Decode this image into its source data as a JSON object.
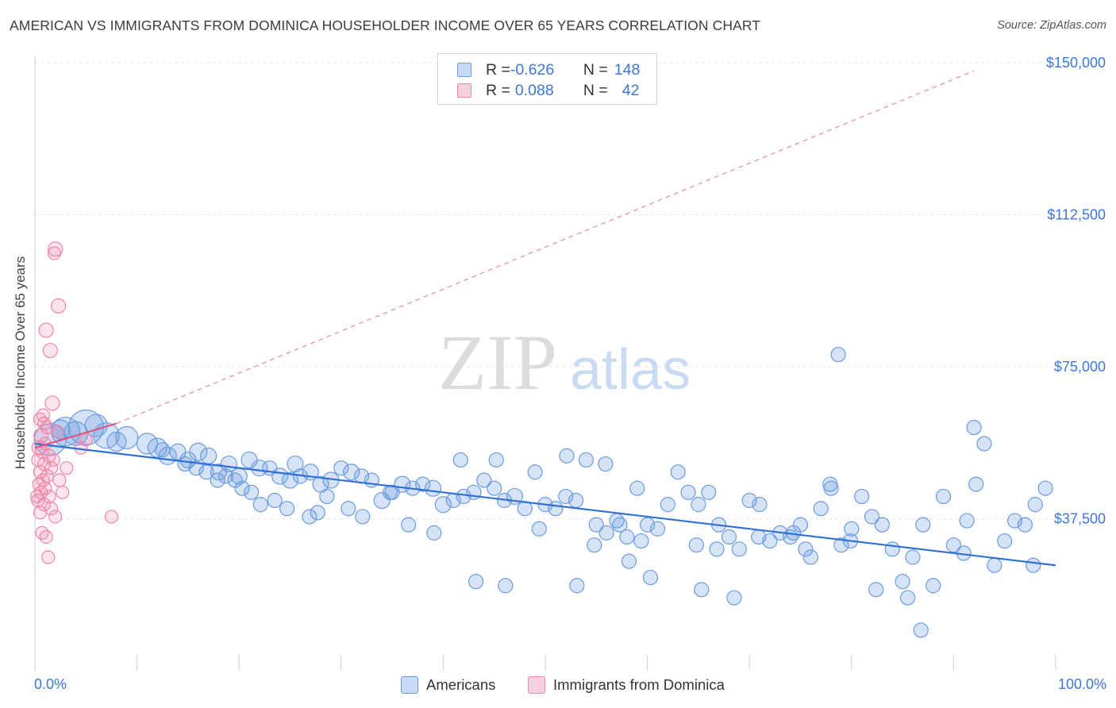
{
  "title": "AMERICAN VS IMMIGRANTS FROM DOMINICA HOUSEHOLDER INCOME OVER 65 YEARS CORRELATION CHART",
  "source": "Source: ZipAtlas.com",
  "watermark": {
    "zip": "ZIP",
    "atlas": "atlas"
  },
  "legend": {
    "rows": [
      {
        "r_label": "R = ",
        "r_value": "-0.626",
        "n_label": "N = ",
        "n_value": "148",
        "color": "#5b8fd9"
      },
      {
        "r_label": "R = ",
        "r_value": "0.088",
        "n_label": "N = ",
        "n_value": "42",
        "color": "#e87fa0"
      }
    ]
  },
  "bottom_legend": {
    "americans": "Americans",
    "dominica": "Immigrants from Dominica"
  },
  "colors": {
    "blue": "#6b9be0",
    "blue_line": "#2f6fd6",
    "pink": "#ef86a8",
    "pink_line": "#e0557f",
    "axis_text": "#3c78d8"
  },
  "chart_data": {
    "type": "scatter",
    "ylabel": "Householder Income Over 65 years",
    "xlim": [
      0,
      100
    ],
    "ylim": [
      0,
      157500
    ],
    "x_tick_labels": {
      "min": "0.0%",
      "max": "100.0%"
    },
    "y_ticks": [
      {
        "value": 37500,
        "label": "$37,500"
      },
      {
        "value": 75000,
        "label": "$75,000"
      },
      {
        "value": 112500,
        "label": "$112,500"
      },
      {
        "value": 150000,
        "label": "$150,000"
      }
    ],
    "series": [
      {
        "name": "Americans",
        "points": [
          [
            1.5,
            57000,
            20
          ],
          [
            3,
            59000,
            18
          ],
          [
            5,
            60000,
            22
          ],
          [
            7,
            58000,
            16
          ],
          [
            9,
            57500,
            14
          ],
          [
            11,
            56000,
            13
          ],
          [
            8,
            56500,
            12
          ],
          [
            4,
            58500,
            15
          ],
          [
            2.5,
            59500,
            12
          ],
          [
            6,
            60500,
            14
          ],
          [
            12,
            55000,
            12
          ],
          [
            13,
            53000,
            11
          ],
          [
            14,
            54000,
            10
          ],
          [
            15,
            52000,
            10
          ],
          [
            16,
            54000,
            11
          ],
          [
            17,
            53000,
            10
          ],
          [
            12.5,
            54500,
            9
          ],
          [
            18,
            49000,
            10
          ],
          [
            19,
            51000,
            10
          ],
          [
            20,
            48000,
            10
          ],
          [
            21,
            52000,
            10
          ],
          [
            22,
            50000,
            10
          ],
          [
            23,
            50000,
            9
          ],
          [
            24,
            48000,
            10
          ],
          [
            25,
            47000,
            10
          ],
          [
            25.5,
            51000,
            10
          ],
          [
            26,
            48000,
            9
          ],
          [
            27,
            49000,
            10
          ],
          [
            28,
            46000,
            10
          ],
          [
            29,
            47000,
            10
          ],
          [
            30,
            50000,
            9
          ],
          [
            31,
            49000,
            10
          ],
          [
            32,
            48000,
            9
          ],
          [
            33,
            47000,
            9
          ],
          [
            34,
            42000,
            10
          ],
          [
            35,
            44000,
            9
          ],
          [
            36,
            46000,
            10
          ],
          [
            37,
            45000,
            9
          ],
          [
            38,
            46000,
            9
          ],
          [
            39,
            45000,
            10
          ],
          [
            40,
            41000,
            10
          ],
          [
            41,
            42000,
            9
          ],
          [
            42,
            43000,
            9
          ],
          [
            43,
            44000,
            9
          ],
          [
            44,
            47000,
            9
          ],
          [
            45,
            45000,
            9
          ],
          [
            46,
            42000,
            9
          ],
          [
            47,
            43000,
            10
          ],
          [
            48,
            40000,
            9
          ],
          [
            49,
            49000,
            9
          ],
          [
            50,
            41000,
            9
          ],
          [
            51,
            40000,
            9
          ],
          [
            52,
            43000,
            9
          ],
          [
            53,
            42000,
            9
          ],
          [
            54,
            52000,
            9
          ],
          [
            55,
            36000,
            9
          ],
          [
            56,
            34000,
            9
          ],
          [
            57,
            37000,
            9
          ],
          [
            58,
            33000,
            9
          ],
          [
            59,
            45000,
            9
          ],
          [
            60,
            36000,
            9
          ],
          [
            61,
            35000,
            9
          ],
          [
            62,
            41000,
            9
          ],
          [
            63,
            49000,
            9
          ],
          [
            64,
            44000,
            9
          ],
          [
            65,
            41000,
            9
          ],
          [
            66,
            44000,
            9
          ],
          [
            67,
            36000,
            9
          ],
          [
            68,
            33000,
            9
          ],
          [
            69,
            30000,
            9
          ],
          [
            70,
            42000,
            9
          ],
          [
            71,
            41000,
            9
          ],
          [
            72,
            32000,
            9
          ],
          [
            73,
            34000,
            9
          ],
          [
            74,
            33000,
            9
          ],
          [
            75,
            36000,
            9
          ],
          [
            76,
            28000,
            9
          ],
          [
            77,
            40000,
            9
          ],
          [
            78,
            45000,
            9
          ],
          [
            79,
            31000,
            9
          ],
          [
            80,
            35000,
            9
          ],
          [
            81,
            43000,
            9
          ],
          [
            82,
            38000,
            9
          ],
          [
            83,
            36000,
            9
          ],
          [
            84,
            30000,
            9
          ],
          [
            85,
            22000,
            9
          ],
          [
            86,
            28000,
            9
          ],
          [
            87,
            36000,
            9
          ],
          [
            88,
            21000,
            9
          ],
          [
            89,
            43000,
            9
          ],
          [
            90,
            31000,
            9
          ],
          [
            91,
            29000,
            9
          ],
          [
            92,
            60000,
            9
          ],
          [
            93,
            56000,
            9
          ],
          [
            94,
            26000,
            9
          ],
          [
            95,
            32000,
            9
          ],
          [
            96,
            37000,
            9
          ],
          [
            97,
            36000,
            9
          ],
          [
            98,
            41000,
            9
          ],
          [
            99,
            45000,
            9
          ],
          [
            78.7,
            78000,
            9
          ],
          [
            97.8,
            26000,
            9
          ],
          [
            85.5,
            18000,
            9
          ],
          [
            86.8,
            10000,
            9
          ],
          [
            92.2,
            46000,
            9
          ],
          [
            91.3,
            37000,
            9
          ],
          [
            75.5,
            30000,
            9
          ],
          [
            74.3,
            34000,
            9
          ],
          [
            79.9,
            32000,
            9
          ],
          [
            82.4,
            20000,
            9
          ],
          [
            70.9,
            33000,
            9
          ],
          [
            66.8,
            30000,
            9
          ],
          [
            68.5,
            18000,
            9
          ],
          [
            65.3,
            20000,
            9
          ],
          [
            64.8,
            31000,
            9
          ],
          [
            60.3,
            23000,
            9
          ],
          [
            59.4,
            32000,
            9
          ],
          [
            58.2,
            27000,
            9
          ],
          [
            54.8,
            31000,
            9
          ],
          [
            53.1,
            21000,
            9
          ],
          [
            46.1,
            21000,
            9
          ],
          [
            49.4,
            35000,
            9
          ],
          [
            43.2,
            22000,
            9
          ],
          [
            57.3,
            36000,
            9
          ],
          [
            77.9,
            46000,
            9
          ],
          [
            55.9,
            51000,
            9
          ],
          [
            52.1,
            53000,
            9
          ],
          [
            45.2,
            52000,
            9
          ],
          [
            41.7,
            52000,
            9
          ],
          [
            39.1,
            34000,
            9
          ],
          [
            36.6,
            36000,
            9
          ],
          [
            34.8,
            44000,
            9
          ],
          [
            32.1,
            38000,
            9
          ],
          [
            30.7,
            40000,
            9
          ],
          [
            28.6,
            43000,
            9
          ],
          [
            27.7,
            39000,
            9
          ],
          [
            26.9,
            38000,
            9
          ],
          [
            24.7,
            40000,
            9
          ],
          [
            23.5,
            42000,
            9
          ],
          [
            22.1,
            41000,
            9
          ],
          [
            21.2,
            44000,
            9
          ],
          [
            20.3,
            45000,
            9
          ],
          [
            19.6,
            47000,
            9
          ],
          [
            18.7,
            48000,
            9
          ],
          [
            17.9,
            47000,
            9
          ],
          [
            16.8,
            49000,
            9
          ],
          [
            15.8,
            50000,
            9
          ],
          [
            14.7,
            51000,
            9
          ]
        ]
      },
      {
        "name": "Immigrants from Dominica",
        "points": [
          [
            2,
            104000,
            9
          ],
          [
            1.9,
            103000,
            8
          ],
          [
            2.3,
            90000,
            9
          ],
          [
            1.1,
            84000,
            9
          ],
          [
            1.5,
            79000,
            9
          ],
          [
            1.7,
            66000,
            9
          ],
          [
            0.8,
            63000,
            8
          ],
          [
            0.5,
            62000,
            8
          ],
          [
            1.2,
            60000,
            8
          ],
          [
            0.6,
            58000,
            9
          ],
          [
            1.0,
            56000,
            8
          ],
          [
            0.4,
            55000,
            9
          ],
          [
            0.7,
            54000,
            8
          ],
          [
            1.4,
            53000,
            8
          ],
          [
            0.3,
            52000,
            8
          ],
          [
            0.9,
            51000,
            8
          ],
          [
            1.6,
            50000,
            8
          ],
          [
            0.5,
            49000,
            8
          ],
          [
            1.2,
            48000,
            8
          ],
          [
            0.8,
            47000,
            8
          ],
          [
            0.4,
            46000,
            8
          ],
          [
            1.0,
            45000,
            8
          ],
          [
            0.6,
            44000,
            8
          ],
          [
            1.4,
            43000,
            8
          ],
          [
            0.3,
            42000,
            8
          ],
          [
            0.9,
            41000,
            8
          ],
          [
            0.5,
            39000,
            8
          ],
          [
            2.0,
            38000,
            8
          ],
          [
            0.7,
            34000,
            8
          ],
          [
            1.1,
            33000,
            8
          ],
          [
            1.3,
            28000,
            8
          ],
          [
            2.7,
            44000,
            8
          ],
          [
            4.5,
            55000,
            8
          ],
          [
            5.0,
            57000,
            8
          ],
          [
            7.5,
            38000,
            8
          ],
          [
            1.8,
            52000,
            8
          ],
          [
            2.4,
            47000,
            8
          ],
          [
            3.1,
            50000,
            8
          ],
          [
            0.2,
            43000,
            8
          ],
          [
            1.6,
            40000,
            8
          ],
          [
            0.9,
            61000,
            8
          ],
          [
            2.2,
            59000,
            8
          ]
        ]
      }
    ],
    "trend_lines": {
      "americans": {
        "x": [
          0,
          100
        ],
        "y": [
          56000,
          26000
        ]
      },
      "dominica_solid": {
        "x": [
          0,
          8
        ],
        "y": [
          55000,
          61000
        ]
      },
      "dominica_dashed": {
        "x": [
          8,
          92
        ],
        "y": [
          61000,
          148000
        ]
      }
    }
  }
}
